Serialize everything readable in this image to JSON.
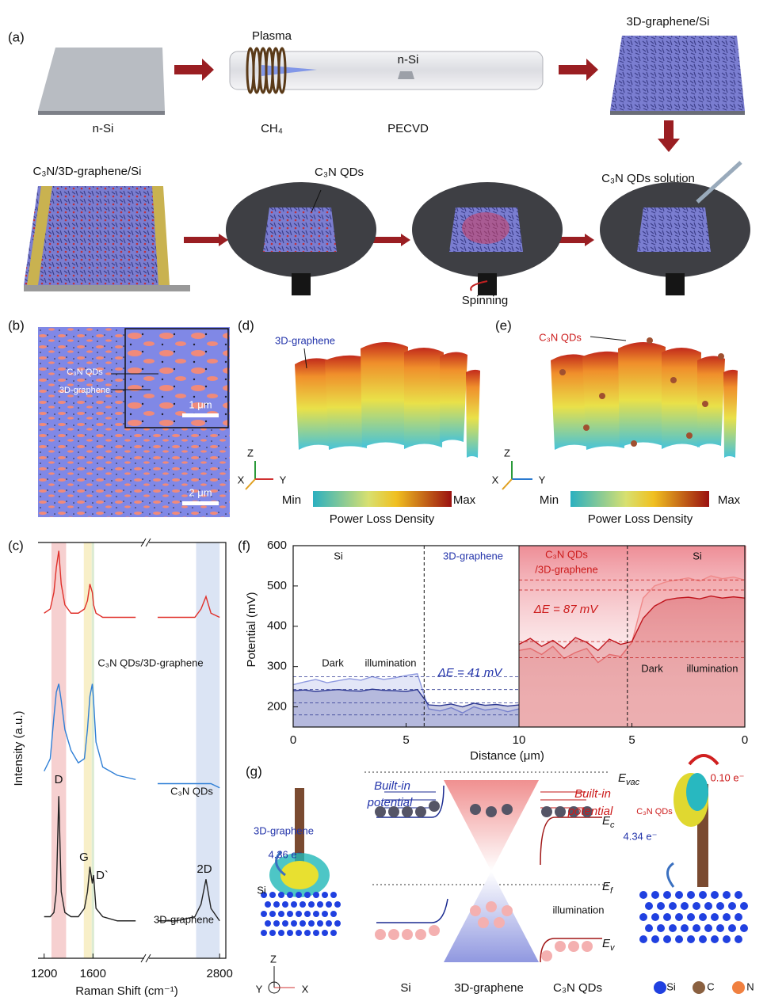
{
  "panel_a": {
    "label": "(a)",
    "substrate": "n-Si",
    "plasma": "Plasma",
    "gas": "CH₄",
    "sample": "n-Si",
    "method": "PECVD",
    "product": "3D-graphene/Si",
    "solution": "C₃N QDs solution",
    "qds": "C₃N QDs",
    "spinning": "Spinning",
    "device": "C₃N/3D-graphene/Si"
  },
  "panel_b": {
    "label": "(b)",
    "inset_labels": [
      "C₃N QDs",
      "3D-graphene"
    ],
    "inset_scale": "1 μm",
    "scale": "2 μm"
  },
  "panel_d": {
    "label": "(d)",
    "annotation": "3D-graphene",
    "axes": [
      "Z",
      "X",
      "Y"
    ],
    "colorbar": {
      "min": "Min",
      "max": "Max",
      "title": "Power Loss Density"
    }
  },
  "panel_e": {
    "label": "(e)",
    "annotation": "C₃N QDs",
    "axes": [
      "Z",
      "X",
      "Y"
    ],
    "colorbar": {
      "min": "Min",
      "max": "Max",
      "title": "Power Loss Density"
    }
  },
  "panel_c": {
    "label": "(c)",
    "chart_data": {
      "type": "line",
      "xlabel": "Raman Shift (cm⁻¹)",
      "ylabel": "Intensity (a.u.)",
      "x": [
        1200,
        1250,
        1280,
        1300,
        1320,
        1340,
        1370,
        1420,
        1480,
        1530,
        1555,
        1575,
        1595,
        1605,
        1625,
        1680,
        1800,
        1950,
        2300,
        2450,
        2600,
        2650,
        2690,
        2730,
        2800
      ],
      "segments": [
        {
          "xlim": [
            1150,
            2020
          ]
        },
        {
          "xlim": [
            2230,
            2850
          ]
        }
      ],
      "xticks": [
        1200,
        1600,
        2800
      ],
      "ylim": [
        0,
        100
      ],
      "bands": [
        {
          "range": [
            1260,
            1380
          ],
          "color": "#f6d0d0"
        },
        {
          "range": [
            1525,
            1590
          ],
          "color": "#f8efc8"
        },
        {
          "range": [
            1590,
            1610
          ],
          "color": "#dcebd2"
        },
        {
          "range": [
            2610,
            2800
          ],
          "color": "#dbe4f4"
        }
      ],
      "series": [
        {
          "name": "C₃N QDs/3D-graphene",
          "color": "#e0302a",
          "values": [
            83,
            84,
            88,
            94,
            98,
            90,
            85,
            83,
            83,
            84,
            86,
            90,
            88,
            85,
            83,
            82,
            82,
            82,
            82,
            82,
            82,
            84,
            87,
            83,
            82
          ]
        },
        {
          "name": "C₃N QDs",
          "color": "#2f7fd6",
          "values": [
            45,
            48,
            58,
            64,
            66,
            62,
            55,
            50,
            47,
            48,
            55,
            63,
            66,
            62,
            52,
            46,
            44,
            43,
            42,
            42,
            42,
            42,
            42,
            42,
            41
          ]
        },
        {
          "name": "3D-graphene",
          "color": "#222222",
          "values": [
            10,
            10,
            11,
            16,
            39,
            16,
            11,
            10,
            10,
            12,
            16,
            22,
            18,
            20,
            12,
            10,
            9,
            9,
            9,
            9,
            10,
            13,
            19,
            12,
            9
          ]
        }
      ],
      "peak_labels": [
        "D",
        "G",
        "D`",
        "2D"
      ]
    }
  },
  "panel_f": {
    "label": "(f)",
    "chart_data": {
      "type": "line",
      "xlabel": "Distance (μm)",
      "ylabel": "Potential (mV)",
      "ylim": [
        150,
        600
      ],
      "yticks": [
        200,
        300,
        400,
        500,
        600
      ],
      "regions": [
        "Si",
        "3D-graphene",
        "C₃N QDs",
        "/3D-graphene",
        "Si"
      ],
      "conditions": [
        "Dark",
        "illumination"
      ],
      "delta_labels": [
        "ΔE = 41 mV",
        "ΔE = 87 mV"
      ],
      "segments": [
        {
          "xlim": [
            0,
            10
          ],
          "xticks": [
            0,
            5,
            10
          ],
          "boundary": 5.8,
          "reference_lines": [
            275,
            243,
            210,
            180
          ],
          "x": [
            0,
            0.5,
            1,
            1.5,
            2,
            2.5,
            3,
            3.5,
            4,
            4.5,
            5,
            5.5,
            6,
            6.5,
            7,
            7.5,
            8,
            8.5,
            9,
            9.5,
            10
          ],
          "series": [
            {
              "color": "#8f9ae0",
              "values": [
                255,
                262,
                268,
                260,
                265,
                270,
                266,
                275,
                268,
                272,
                278,
                282,
                195,
                190,
                198,
                185,
                200,
                192,
                196,
                188,
                195
              ]
            },
            {
              "color": "#2a3590",
              "values": [
                240,
                242,
                238,
                241,
                243,
                240,
                239,
                244,
                241,
                240,
                238,
                243,
                205,
                203,
                207,
                200,
                209,
                204,
                206,
                202,
                205
              ]
            }
          ]
        },
        {
          "xlim": [
            10,
            0
          ],
          "xticks": [
            5,
            0
          ],
          "boundary": 5.2,
          "reference_lines": [
            515,
            490,
            362,
            322
          ],
          "x": [
            10,
            9.5,
            9,
            8.5,
            8,
            7.5,
            7,
            6.5,
            6,
            5.5,
            5,
            4.5,
            4,
            3.5,
            3,
            2.5,
            2,
            1.5,
            1,
            0.5,
            0
          ],
          "series": [
            {
              "color": "#f08a8a",
              "values": [
                340,
                345,
                330,
                350,
                320,
                335,
                345,
                310,
                330,
                325,
                360,
                470,
                500,
                510,
                515,
                520,
                512,
                525,
                518,
                522,
                515
              ]
            },
            {
              "color": "#c0151d",
              "values": [
                355,
                370,
                350,
                365,
                345,
                372,
                360,
                340,
                368,
                355,
                362,
                420,
                450,
                465,
                470,
                472,
                468,
                475,
                470,
                473,
                470
              ]
            }
          ]
        }
      ]
    }
  },
  "panel_g": {
    "label": "(g)",
    "levels": {
      "vac": {
        "symbol": "E",
        "sub": "vac"
      },
      "c": {
        "symbol": "E",
        "sub": "c"
      },
      "f": {
        "symbol": "E",
        "sub": "f"
      },
      "v": {
        "symbol": "E",
        "sub": "v"
      }
    },
    "built_in_left": [
      "Built-in",
      "potential"
    ],
    "built_in_right": [
      "Built-in",
      "potential"
    ],
    "graphene_label": "3D-graphene",
    "charge_left": "4.36 e⁻",
    "si_label": "Si",
    "charge_right": "4.34 e⁻",
    "charge_qd": "0.10 e⁻",
    "qd_label": "C₃N QDs",
    "illumination": "illumination",
    "columns": [
      "Si",
      "3D-graphene",
      "C₃N QDs"
    ],
    "legend": [
      "Si",
      "C",
      "N"
    ],
    "axes": [
      "Z",
      "Y",
      "X"
    ]
  }
}
